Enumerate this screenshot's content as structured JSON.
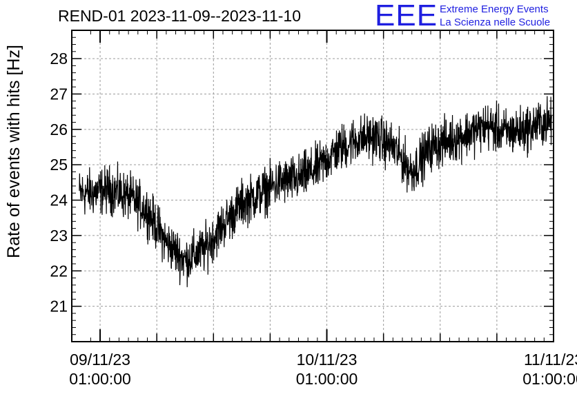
{
  "header": {
    "title": "REND-01 2023-11-09--2023-11-10",
    "logo_mark": "EEE",
    "logo_line1": "Extreme Energy Events",
    "logo_line2": "La Scienza nelle Scuole",
    "logo_color": "#1f1fe0"
  },
  "chart_data": {
    "type": "line",
    "title": "REND-01 2023-11-09--2023-11-10",
    "xlabel": "",
    "ylabel": "Rate of events with hits [Hz]",
    "ylim": [
      20,
      28.8
    ],
    "xlim": [
      "2023-11-08T22:00:00",
      "2023-11-11T01:00:00"
    ],
    "yticks": [
      21,
      22,
      23,
      24,
      25,
      26,
      27,
      28
    ],
    "xticks": [
      {
        "label1": "09/11/23",
        "label2": "01:00:00"
      },
      {
        "label1": "10/11/23",
        "label2": "01:00:00"
      },
      {
        "label1": "11/11/23",
        "label2": "01:00:00"
      }
    ],
    "grid": true,
    "line_color": "#000000",
    "series": [
      {
        "x": [
          "2023-11-09T00:00:00",
          "2023-11-09T02:00:00",
          "2023-11-09T04:00:00",
          "2023-11-09T06:00:00",
          "2023-11-09T08:00:00",
          "2023-11-09T10:00:00",
          "2023-11-09T12:00:00",
          "2023-11-09T14:00:00",
          "2023-11-09T16:00:00",
          "2023-11-09T18:00:00",
          "2023-11-09T20:00:00",
          "2023-11-09T22:00:00",
          "2023-11-10T00:00:00",
          "2023-11-10T02:00:00",
          "2023-11-10T04:00:00",
          "2023-11-10T06:00:00",
          "2023-11-10T08:00:00",
          "2023-11-10T10:00:00",
          "2023-11-10T12:00:00",
          "2023-11-10T14:00:00",
          "2023-11-10T16:00:00",
          "2023-11-10T18:00:00",
          "2023-11-10T20:00:00",
          "2023-11-10T22:00:00",
          "2023-11-11T00:00:00"
        ],
        "y": [
          24.2,
          24.3,
          24.1,
          23.7,
          22.8,
          22.3,
          22.6,
          23.3,
          23.9,
          24.2,
          24.5,
          24.6,
          24.9,
          25.4,
          25.7,
          25.8,
          25.5,
          24.8,
          25.5,
          25.7,
          25.9,
          26.1,
          25.9,
          26.0,
          26.2
        ],
        "noise_amplitude": 0.7
      }
    ]
  }
}
